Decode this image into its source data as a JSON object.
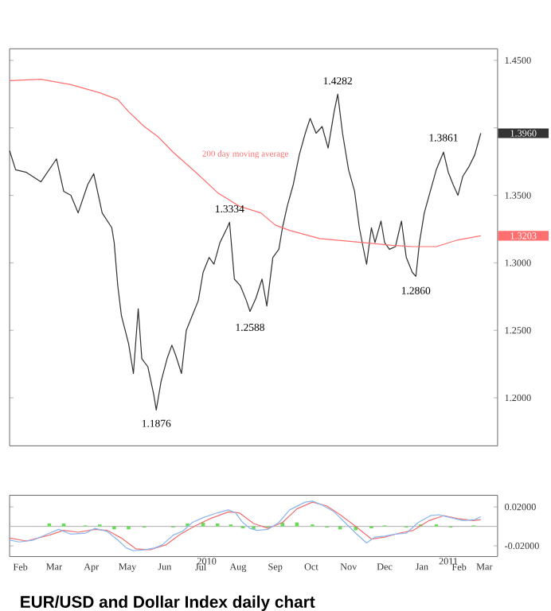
{
  "chart_data": [
    {
      "type": "line",
      "tick_labels": "y",
      "xlim": [
        "2010-02-01",
        "2011-03-14"
      ],
      "ylim": [
        1.1644,
        1.4586
      ],
      "yticks": [
        {
          "value": 1.2,
          "label": "1.2000"
        },
        {
          "value": 1.25,
          "label": "1.2500"
        },
        {
          "value": 1.3,
          "label": "1.3000"
        },
        {
          "value": 1.35,
          "label": "1.3500"
        },
        {
          "value": 1.4,
          "label": null
        },
        {
          "value": 1.45,
          "label": "1.4500"
        }
      ],
      "series": [
        {
          "color": "#333333",
          "x": [
            "2010-02-01",
            "2010-02-06",
            "2010-02-15",
            "2010-02-27",
            "2010-03-12",
            "2010-03-18",
            "2010-03-24",
            "2010-03-30",
            "2010-04-07",
            "2010-04-12",
            "2010-04-19",
            "2010-04-27",
            "2010-04-29",
            "2010-05-02",
            "2010-05-05",
            "2010-05-11",
            "2010-05-15",
            "2010-05-19",
            "2010-05-22",
            "2010-05-27",
            "2010-06-01",
            "2010-06-03",
            "2010-06-07",
            "2010-06-12",
            "2010-06-16",
            "2010-06-19",
            "2010-06-24",
            "2010-06-28",
            "2010-07-03",
            "2010-07-08",
            "2010-07-12",
            "2010-07-17",
            "2010-07-21",
            "2010-07-26",
            "2010-08-01",
            "2010-08-03",
            "2010-08-07",
            "2010-08-12",
            "2010-08-17",
            "2010-08-20",
            "2010-08-25",
            "2010-08-30",
            "2010-09-03",
            "2010-09-08",
            "2010-09-13",
            "2010-09-16",
            "2010-09-20",
            "2010-09-25",
            "2010-09-30",
            "2010-10-05",
            "2010-10-09",
            "2010-10-14",
            "2010-10-19",
            "2010-10-24",
            "2010-10-29",
            "2010-11-01",
            "2010-11-05",
            "2010-11-10",
            "2010-11-15",
            "2010-11-19",
            "2010-11-22",
            "2010-11-25",
            "2010-11-29",
            "2010-12-02",
            "2010-12-07",
            "2010-12-10",
            "2010-12-14",
            "2010-12-19",
            "2010-12-24",
            "2010-12-28",
            "2011-01-02",
            "2011-01-05",
            "2011-01-08",
            "2011-01-12",
            "2011-01-17",
            "2011-01-22",
            "2011-01-28",
            "2011-02-01",
            "2011-02-05",
            "2011-02-09",
            "2011-02-13",
            "2011-02-18",
            "2011-02-23",
            "2011-02-28"
          ],
          "values": [
            1.383,
            1.369,
            1.367,
            1.36,
            1.377,
            1.353,
            1.35,
            1.337,
            1.358,
            1.366,
            1.337,
            1.326,
            1.315,
            1.283,
            1.261,
            1.24,
            1.218,
            1.266,
            1.229,
            1.223,
            1.202,
            1.191,
            1.212,
            1.229,
            1.239,
            1.232,
            1.218,
            1.25,
            1.261,
            1.272,
            1.293,
            1.304,
            1.299,
            1.315,
            1.326,
            1.33,
            1.288,
            1.283,
            1.272,
            1.264,
            1.274,
            1.288,
            1.268,
            1.304,
            1.31,
            1.326,
            1.342,
            1.358,
            1.38,
            1.396,
            1.407,
            1.396,
            1.401,
            1.385,
            1.412,
            1.425,
            1.396,
            1.369,
            1.353,
            1.326,
            1.312,
            1.299,
            1.326,
            1.315,
            1.331,
            1.315,
            1.31,
            1.312,
            1.331,
            1.304,
            1.293,
            1.29,
            1.315,
            1.337,
            1.353,
            1.369,
            1.382,
            1.367,
            1.358,
            1.35,
            1.364,
            1.371,
            1.38,
            1.396
          ]
        },
        {
          "name": "200 day moving average",
          "color": "#ff6f6f",
          "x": [
            "2010-02-01",
            "2010-02-27",
            "2010-03-24",
            "2010-04-17",
            "2010-05-02",
            "2010-05-11",
            "2010-05-24",
            "2010-06-05",
            "2010-06-17",
            "2010-07-06",
            "2010-07-24",
            "2010-08-11",
            "2010-08-29",
            "2010-09-10",
            "2010-09-22",
            "2010-10-17",
            "2010-11-22",
            "2010-12-16",
            "2011-01-03",
            "2011-01-22",
            "2011-02-09",
            "2011-02-28"
          ],
          "values": [
            1.435,
            1.436,
            1.432,
            1.426,
            1.421,
            1.412,
            1.401,
            1.393,
            1.382,
            1.367,
            1.352,
            1.342,
            1.337,
            1.328,
            1.324,
            1.318,
            1.315,
            1.313,
            1.312,
            1.312,
            1.317,
            1.32
          ]
        }
      ],
      "annotations": [
        {
          "text": "1.4282",
          "x": "2010-11-01",
          "y": 1.4282
        },
        {
          "text": "1.3334",
          "x": "2010-08-03",
          "y": 1.3334
        },
        {
          "text": "1.2588",
          "x": "2010-08-20",
          "y": 1.2588
        },
        {
          "text": "1.1876",
          "x": "2010-06-03",
          "y": 1.1876
        },
        {
          "text": "1.2860",
          "x": "2011-01-05",
          "y": 1.286
        },
        {
          "text": "1.3861",
          "x": "2011-01-28",
          "y": 1.3861
        },
        "1.3960",
        "1.3203"
      ]
    },
    {
      "type": "line",
      "xlim": [
        "2010-02-01",
        "2011-03-14"
      ],
      "ylim": [
        -0.031,
        0.032
      ],
      "yticks": [
        {
          "value": -0.02,
          "label": "-0.02000"
        },
        {
          "value": 0.02,
          "label": "0.02000"
        }
      ],
      "xticks": [
        {
          "value": "2010-02-10",
          "label": "Feb"
        },
        {
          "value": "2010-03-10",
          "label": "Mar"
        },
        {
          "value": "2010-04-10",
          "label": "Apr"
        },
        {
          "value": "2010-05-10",
          "label": "May"
        },
        {
          "value": "2010-06-10",
          "label": "Jun"
        },
        {
          "value": "2010-07-10",
          "label": "Jul"
        },
        {
          "value": "2010-08-10",
          "label": "Aug"
        },
        {
          "value": "2010-09-10",
          "label": "Sep"
        },
        {
          "value": "2010-10-10",
          "label": "Oct"
        },
        {
          "value": "2010-11-10",
          "label": "Nov"
        },
        {
          "value": "2010-12-10",
          "label": "Dec"
        },
        {
          "value": "2011-01-10",
          "label": "Jan"
        },
        {
          "value": "2011-02-10",
          "label": "Feb"
        },
        {
          "value": "2011-03-03",
          "label": "Mar"
        }
      ],
      "x2lim": [
        "2010-02-01",
        "2011-03-14"
      ],
      "x2ticks": [
        {
          "value": "2010-07-15",
          "label": "2010"
        },
        {
          "value": "2011-02-01",
          "label": "2011"
        }
      ],
      "ref_lines": [
        {
          "axis": "y",
          "value": 0,
          "color": "#aaaaaa"
        }
      ],
      "series": [
        {
          "type": "bar",
          "color": "#66dd55",
          "x": [
            "2010-03-06",
            "2010-03-18",
            "2010-04-05",
            "2010-04-17",
            "2010-04-29",
            "2010-05-11",
            "2010-05-24",
            "2010-06-17",
            "2010-06-29",
            "2010-07-12",
            "2010-07-24",
            "2010-08-04",
            "2010-08-14",
            "2010-08-23",
            "2010-09-04",
            "2010-09-16",
            "2010-09-28",
            "2010-10-11",
            "2010-10-23",
            "2010-11-03",
            "2010-11-16",
            "2010-11-29",
            "2010-12-10",
            "2010-12-28",
            "2011-01-09",
            "2011-01-22",
            "2011-02-03",
            "2011-02-22"
          ],
          "values": [
            0.003,
            0.003,
            0.001,
            0.002,
            -0.003,
            -0.003,
            -0.001,
            -0.001,
            0.003,
            0.004,
            0.003,
            0.002,
            -0.002,
            -0.003,
            -0.001,
            0.004,
            0.004,
            0.002,
            -0.001,
            -0.003,
            -0.004,
            -0.002,
            0.001,
            -0.001,
            0.002,
            0.002,
            -0.001,
            0.001
          ]
        },
        {
          "color": "#f07070",
          "x": [
            "2010-02-01",
            "2010-02-15",
            "2010-03-06",
            "2010-03-18",
            "2010-03-30",
            "2010-04-13",
            "2010-04-23",
            "2010-05-05",
            "2010-05-17",
            "2010-05-29",
            "2010-06-11",
            "2010-06-23",
            "2010-07-06",
            "2010-07-18",
            "2010-08-02",
            "2010-08-11",
            "2010-08-23",
            "2010-09-04",
            "2010-09-16",
            "2010-09-28",
            "2010-10-11",
            "2010-10-23",
            "2010-11-03",
            "2010-11-16",
            "2010-11-29",
            "2010-12-10",
            "2010-12-22",
            "2011-01-03",
            "2011-01-16",
            "2011-01-28",
            "2011-02-09",
            "2011-02-22",
            "2011-02-28"
          ],
          "values": [
            -0.012,
            -0.015,
            -0.009,
            -0.004,
            -0.006,
            -0.003,
            -0.004,
            -0.012,
            -0.023,
            -0.024,
            -0.019,
            -0.008,
            0.001,
            0.008,
            0.015,
            0.014,
            0.003,
            -0.002,
            0.004,
            0.018,
            0.025,
            0.021,
            0.012,
            0.0,
            -0.013,
            -0.011,
            -0.007,
            -0.004,
            0.006,
            0.011,
            0.008,
            0.006,
            0.007
          ]
        },
        {
          "color": "#8ab4f0",
          "x": [
            "2010-02-01",
            "2010-02-09",
            "2010-02-21",
            "2010-03-06",
            "2010-03-14",
            "2010-03-24",
            "2010-04-05",
            "2010-04-13",
            "2010-04-23",
            "2010-05-02",
            "2010-05-09",
            "2010-05-15",
            "2010-05-24",
            "2010-06-02",
            "2010-06-08",
            "2010-06-17",
            "2010-06-25",
            "2010-07-03",
            "2010-07-12",
            "2010-07-24",
            "2010-08-02",
            "2010-08-08",
            "2010-08-14",
            "2010-08-20",
            "2010-08-26",
            "2010-09-04",
            "2010-09-13",
            "2010-09-22",
            "2010-10-05",
            "2010-10-11",
            "2010-10-19",
            "2010-10-29",
            "2010-11-07",
            "2010-11-16",
            "2010-11-25",
            "2010-12-02",
            "2010-12-10",
            "2010-12-19",
            "2010-12-28",
            "2011-01-07",
            "2011-01-17",
            "2011-01-24",
            "2011-02-03",
            "2011-02-13",
            "2011-02-23",
            "2011-02-28"
          ],
          "values": [
            -0.014,
            -0.016,
            -0.014,
            -0.007,
            -0.003,
            -0.008,
            -0.007,
            -0.002,
            -0.005,
            -0.014,
            -0.022,
            -0.025,
            -0.024,
            -0.022,
            -0.019,
            -0.009,
            -0.005,
            0.004,
            0.009,
            0.014,
            0.017,
            0.014,
            0.004,
            -0.002,
            -0.004,
            -0.003,
            0.004,
            0.017,
            0.025,
            0.026,
            0.022,
            0.015,
            0.004,
            -0.007,
            -0.017,
            -0.011,
            -0.01,
            -0.008,
            -0.007,
            0.004,
            0.011,
            0.012,
            0.009,
            0.006,
            0.007,
            0.01
          ]
        }
      ],
      "annotations": [
        "EUR/USD and Dollar Index daily chart"
      ]
    }
  ]
}
